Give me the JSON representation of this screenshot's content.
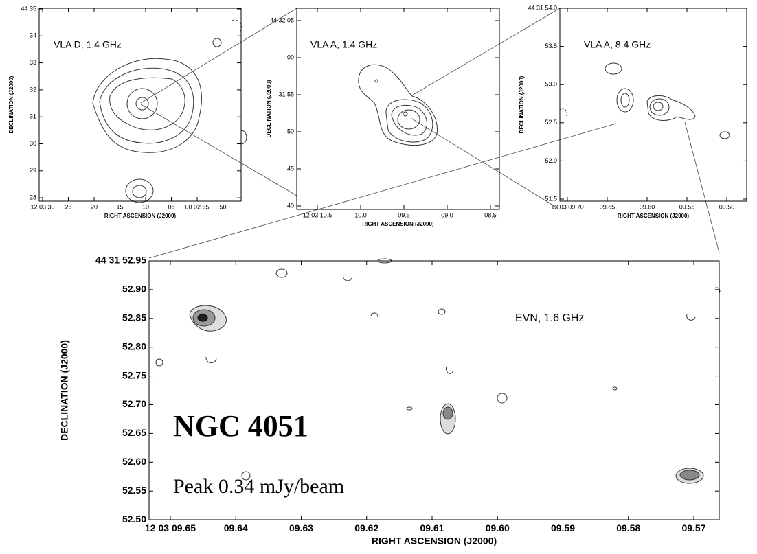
{
  "panels": [
    {
      "label": "VLA D, 1.4 GHz",
      "y_axis": "DECLINATION (J2000)",
      "x_axis": "RIGHT ASCENSION (J2000)",
      "yticks": [
        "44 35",
        "34",
        "33",
        "32",
        "31",
        "30",
        "29",
        "28"
      ],
      "xticks": [
        "12 03 30",
        "25",
        "20",
        "15",
        "10",
        "05",
        "00 02 55",
        "50"
      ]
    },
    {
      "label": "VLA A, 1.4 GHz",
      "y_axis": "DECLINATION (J2000)",
      "x_axis": "RIGHT ASCENSION (J2000)",
      "yticks": [
        "44 32 05",
        "00",
        "31 55",
        "50",
        "45",
        "40"
      ],
      "xticks": [
        "12 03 10.5",
        "10.0",
        "09.5",
        "09.0",
        "08.5"
      ]
    },
    {
      "label": "VLA A, 8.4 GHz",
      "y_axis": "DECLINATION (J2000)",
      "x_axis": "RIGHT ASCENSION (J2000)",
      "yticks": [
        "44 31 54.0",
        "53.5",
        "53.0",
        "52.5",
        "52.0",
        "51.5"
      ],
      "xticks": [
        "12 03 09.70",
        "09.65",
        "09.60",
        "09.55",
        "09.50"
      ]
    },
    {
      "label": "EVN, 1.6 GHz",
      "y_axis": "DECLINATION (J2000)",
      "x_axis": "RIGHT ASCENSION (J2000)",
      "yticks": [
        "44 31 52.95",
        "52.90",
        "52.85",
        "52.80",
        "52.75",
        "52.70",
        "52.65",
        "52.60",
        "52.55",
        "52.50"
      ],
      "xticks": [
        "12 03 09.65",
        "09.64",
        "09.63",
        "09.62",
        "09.61",
        "09.60",
        "09.59",
        "09.58",
        "09.57"
      ]
    }
  ],
  "source": "NGC 4051",
  "peak": "Peak 0.34 mJy/beam"
}
